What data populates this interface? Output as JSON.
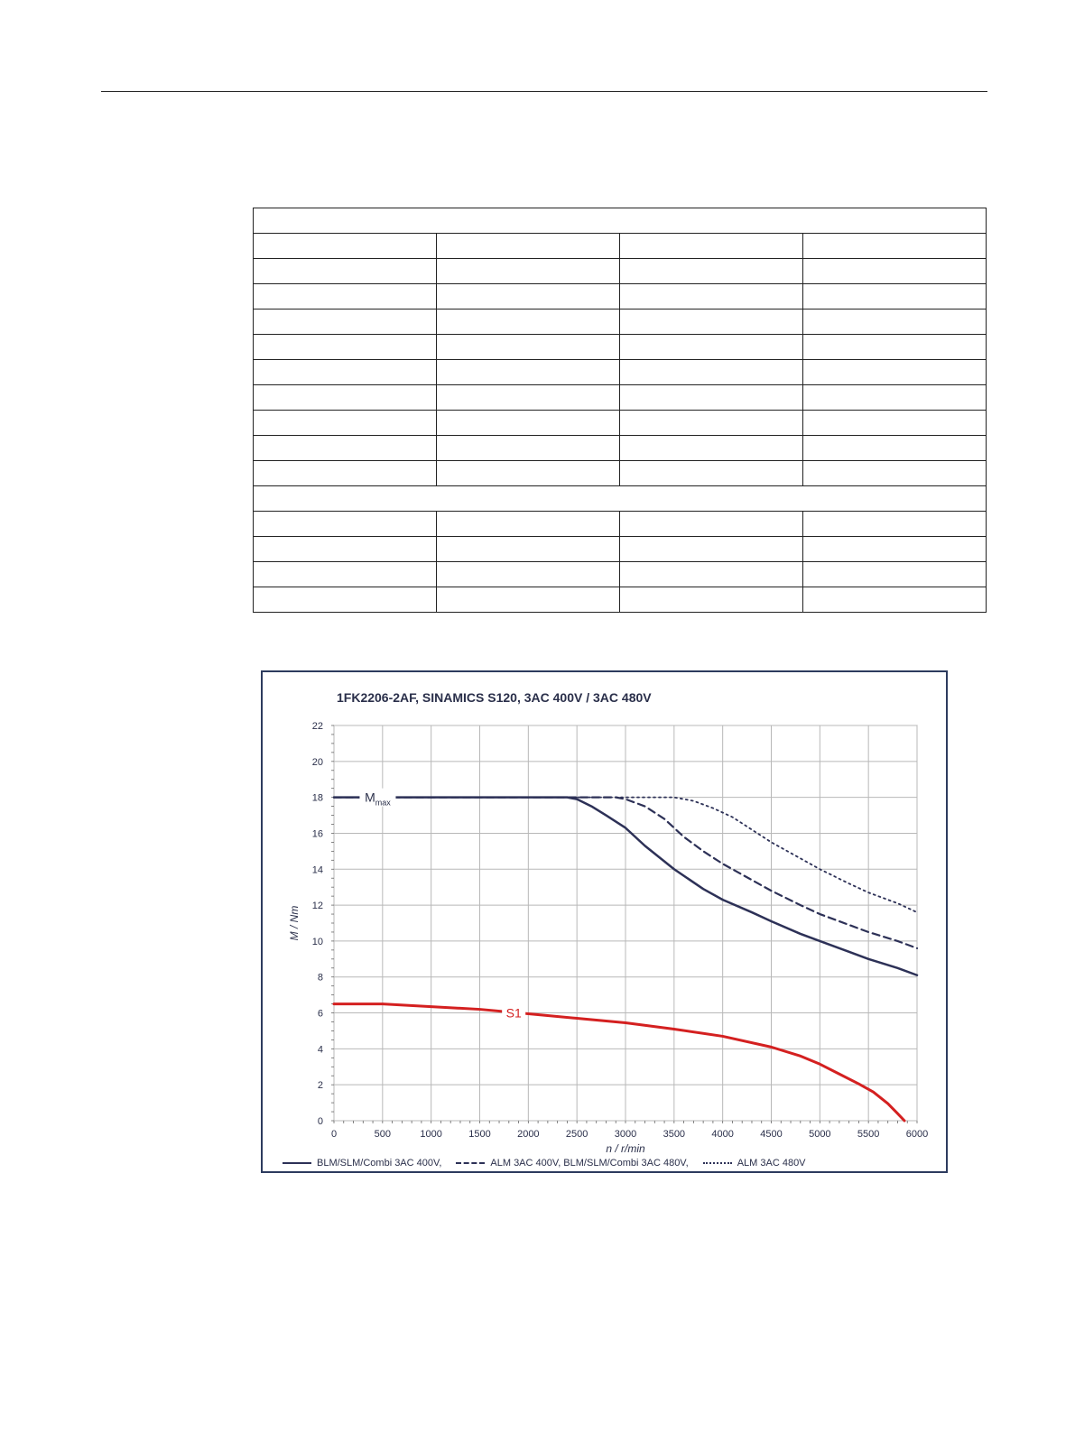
{
  "page": {
    "colors": {
      "rule": "#222222",
      "frame": "#2d3b5e",
      "text": "#2a2f4a"
    }
  },
  "table": {
    "rows": [
      {
        "type": "full"
      },
      {
        "type": "split"
      },
      {
        "type": "split"
      },
      {
        "type": "split"
      },
      {
        "type": "split"
      },
      {
        "type": "split"
      },
      {
        "type": "split"
      },
      {
        "type": "split"
      },
      {
        "type": "split"
      },
      {
        "type": "split"
      },
      {
        "type": "split"
      },
      {
        "type": "full"
      },
      {
        "type": "split"
      },
      {
        "type": "split"
      },
      {
        "type": "split"
      },
      {
        "type": "split"
      }
    ]
  },
  "chart_data": {
    "type": "line",
    "title": "1FK2206-2AF,  SINAMICS S120,  3AC 400V / 3AC 480V",
    "xlabel": "n / r/min",
    "ylabel": "M / Nm",
    "xlim": [
      0,
      6000
    ],
    "ylim": [
      0,
      22
    ],
    "xticks": [
      0,
      500,
      1000,
      1500,
      2000,
      2500,
      3000,
      3500,
      4000,
      4500,
      5000,
      5500,
      6000
    ],
    "yticks": [
      0,
      2,
      4,
      6,
      8,
      10,
      12,
      14,
      16,
      18,
      20,
      22
    ],
    "grid": true,
    "legend_position": "bottom",
    "annotations": [
      {
        "text": "M",
        "sub": "max",
        "x": 450,
        "y": 18,
        "color": "#2a2f4a"
      },
      {
        "text": "S1",
        "x": 1850,
        "y": 6.0,
        "color": "#d42020"
      }
    ],
    "series": [
      {
        "name": "BLM/SLM/Combi 3AC 400V,",
        "style": "solid",
        "color": "#2d3157",
        "x": [
          0,
          2400,
          2500,
          2650,
          2800,
          3000,
          3200,
          3500,
          3800,
          4000,
          4300,
          4500,
          4800,
          5000,
          5300,
          5500,
          5800,
          6000
        ],
        "y": [
          18,
          18,
          17.9,
          17.5,
          17.0,
          16.3,
          15.3,
          14.0,
          12.9,
          12.3,
          11.6,
          11.1,
          10.4,
          10.0,
          9.4,
          9.0,
          8.5,
          8.1
        ]
      },
      {
        "name": "ALM 3AC 400V, BLM/SLM/Combi 3AC 480V,",
        "style": "dashed",
        "color": "#2d3157",
        "x": [
          0,
          2900,
          3000,
          3200,
          3400,
          3600,
          3800,
          4000,
          4300,
          4500,
          4800,
          5000,
          5300,
          5500,
          5800,
          6000
        ],
        "y": [
          18,
          18,
          17.9,
          17.5,
          16.8,
          15.8,
          15.0,
          14.3,
          13.4,
          12.8,
          12.0,
          11.5,
          10.9,
          10.5,
          10.0,
          9.6
        ]
      },
      {
        "name": "ALM 3AC 480V",
        "style": "dotted",
        "color": "#2d3157",
        "x": [
          0,
          3500,
          3700,
          3900,
          4100,
          4300,
          4500,
          4700,
          5000,
          5300,
          5500,
          5800,
          6000
        ],
        "y": [
          18,
          18,
          17.8,
          17.4,
          16.9,
          16.2,
          15.5,
          14.9,
          14.0,
          13.2,
          12.7,
          12.1,
          11.6
        ]
      },
      {
        "name": "S1",
        "style": "solid",
        "color": "#d42020",
        "x": [
          0,
          500,
          1000,
          1500,
          2000,
          2500,
          3000,
          3500,
          4000,
          4500,
          4800,
          5000,
          5200,
          5400,
          5550,
          5700,
          5800,
          5870
        ],
        "y": [
          6.5,
          6.5,
          6.35,
          6.2,
          5.95,
          5.7,
          5.45,
          5.1,
          4.7,
          4.1,
          3.6,
          3.15,
          2.6,
          2.05,
          1.6,
          0.95,
          0.4,
          0
        ]
      }
    ]
  }
}
